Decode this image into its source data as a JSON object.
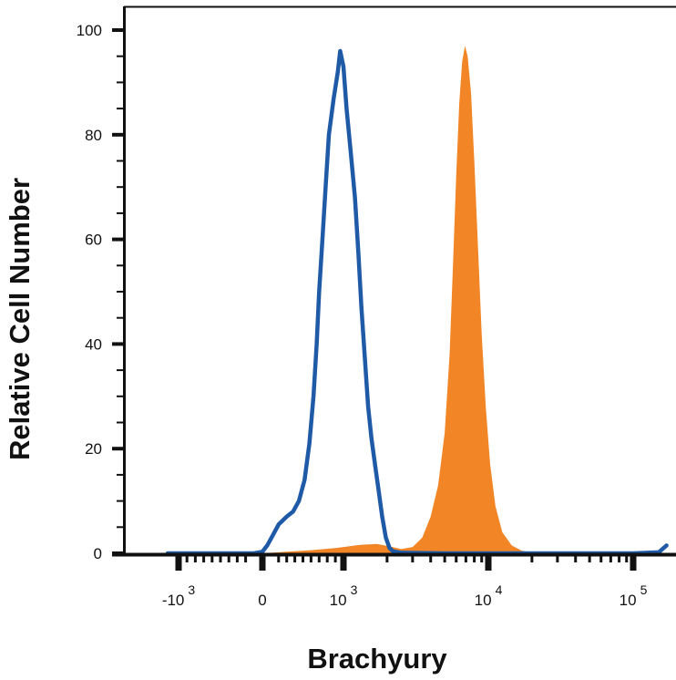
{
  "chart_data": {
    "type": "area",
    "title": "",
    "xlabel": "Brachyury",
    "ylabel": "Relative Cell Number",
    "x_scale": "biexponential",
    "ylim": [
      0,
      100
    ],
    "grid": false,
    "legend": "none",
    "y_ticks": [
      {
        "value": 0,
        "label": "0"
      },
      {
        "value": 20,
        "label": "20"
      },
      {
        "value": 40,
        "label": "40"
      },
      {
        "value": 60,
        "label": "60"
      },
      {
        "value": 80,
        "label": "80"
      },
      {
        "value": 100,
        "label": "100"
      }
    ],
    "x_ticks": [
      {
        "value": -1000,
        "base": "-10",
        "exp": "3"
      },
      {
        "value": 0,
        "base": "0",
        "exp": ""
      },
      {
        "value": 1000,
        "base": "10",
        "exp": "3"
      },
      {
        "value": 10000,
        "base": "10",
        "exp": "4"
      },
      {
        "value": 100000,
        "base": "10",
        "exp": "5"
      }
    ],
    "series": [
      {
        "kind": "line",
        "color": "#1f5aa6",
        "points": [
          [
            -2000,
            0
          ],
          [
            -100,
            0
          ],
          [
            0,
            0.3
          ],
          [
            60,
            1.5
          ],
          [
            130,
            3.5
          ],
          [
            200,
            5.5
          ],
          [
            300,
            7
          ],
          [
            380,
            8
          ],
          [
            450,
            10
          ],
          [
            520,
            14
          ],
          [
            580,
            21
          ],
          [
            630,
            30
          ],
          [
            670,
            40
          ],
          [
            700,
            50
          ],
          [
            740,
            60
          ],
          [
            780,
            70
          ],
          [
            820,
            80
          ],
          [
            880,
            87
          ],
          [
            930,
            92
          ],
          [
            960,
            96
          ],
          [
            1000,
            93
          ],
          [
            1050,
            85
          ],
          [
            1120,
            77
          ],
          [
            1200,
            68
          ],
          [
            1270,
            57
          ],
          [
            1330,
            47
          ],
          [
            1400,
            38
          ],
          [
            1480,
            28
          ],
          [
            1560,
            22
          ],
          [
            1650,
            17
          ],
          [
            1750,
            12
          ],
          [
            1850,
            7
          ],
          [
            1960,
            3
          ],
          [
            2080,
            1
          ],
          [
            2200,
            0.4
          ],
          [
            2500,
            0.1
          ],
          [
            5000,
            0
          ],
          [
            100000,
            0
          ],
          [
            150000,
            0.2
          ],
          [
            170000,
            1.5
          ]
        ]
      },
      {
        "kind": "filled",
        "color": "#f28525",
        "points": [
          [
            0,
            0
          ],
          [
            300,
            0.3
          ],
          [
            600,
            0.6
          ],
          [
            900,
            1
          ],
          [
            1300,
            1.6
          ],
          [
            1700,
            1.8
          ],
          [
            2100,
            1.3
          ],
          [
            2500,
            0.8
          ],
          [
            3000,
            1.2
          ],
          [
            3500,
            3
          ],
          [
            4000,
            7
          ],
          [
            4500,
            13
          ],
          [
            5000,
            23
          ],
          [
            5400,
            38
          ],
          [
            5700,
            55
          ],
          [
            6000,
            72
          ],
          [
            6300,
            86
          ],
          [
            6600,
            94
          ],
          [
            6900,
            97
          ],
          [
            7200,
            95
          ],
          [
            7600,
            88
          ],
          [
            8000,
            75
          ],
          [
            8500,
            58
          ],
          [
            9000,
            42
          ],
          [
            9600,
            28
          ],
          [
            10300,
            17
          ],
          [
            11200,
            9
          ],
          [
            12500,
            4
          ],
          [
            14500,
            1.5
          ],
          [
            17000,
            0.5
          ],
          [
            22000,
            0
          ]
        ]
      }
    ]
  }
}
